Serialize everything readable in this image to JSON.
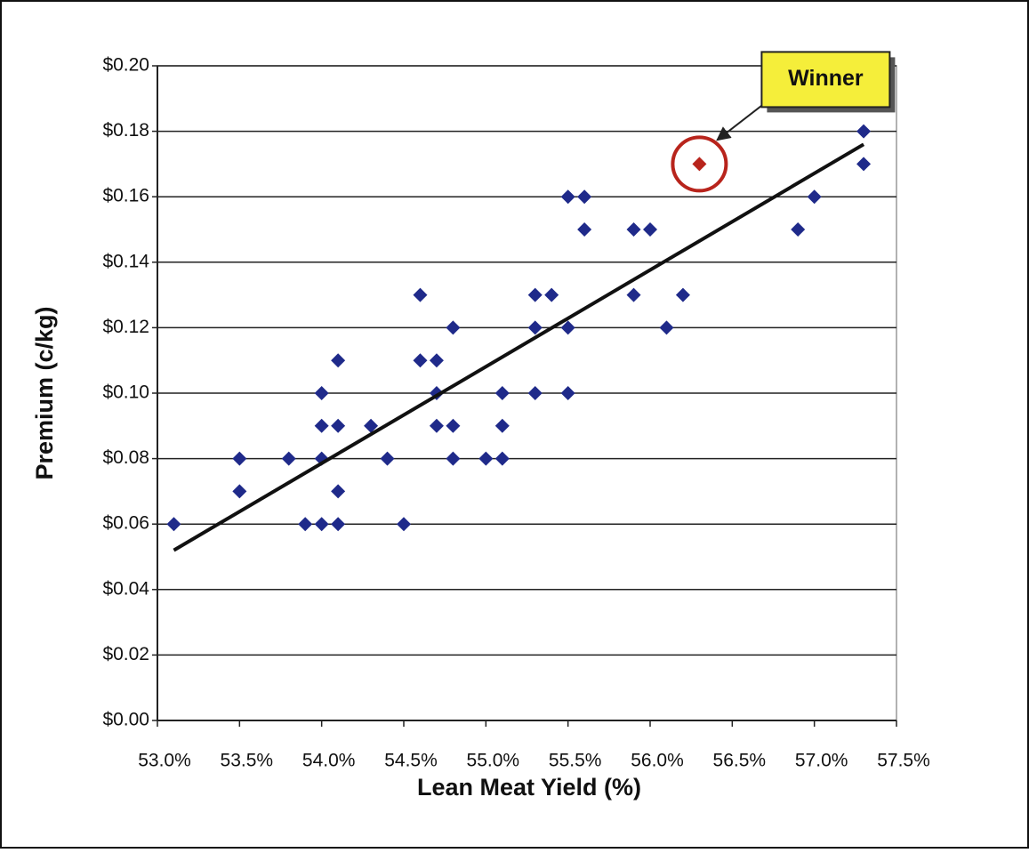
{
  "chart_data": {
    "type": "scatter",
    "x_label": "Lean Meat Yield (%)",
    "y_label": "Premium (c/kg)",
    "xlim": [
      53.0,
      57.5
    ],
    "ylim": [
      0,
      0.2
    ],
    "xticks": [
      {
        "value": 53.0,
        "label": "53.0%"
      },
      {
        "value": 53.5,
        "label": "53.5%"
      },
      {
        "value": 54.0,
        "label": "54.0%"
      },
      {
        "value": 54.5,
        "label": "54.5%"
      },
      {
        "value": 55.0,
        "label": "55.0%"
      },
      {
        "value": 55.5,
        "label": "55.5%"
      },
      {
        "value": 56.0,
        "label": "56.0%"
      },
      {
        "value": 56.5,
        "label": "56.5%"
      },
      {
        "value": 57.0,
        "label": "57.0%"
      },
      {
        "value": 57.5,
        "label": "57.5%"
      }
    ],
    "yticks": [
      {
        "value": 0,
        "label": "$0.00"
      },
      {
        "value": 0.02,
        "label": "$0.02"
      },
      {
        "value": 0.04,
        "label": "$0.04"
      },
      {
        "value": 0.06,
        "label": "$0.06"
      },
      {
        "value": 0.08,
        "label": "$0.08"
      },
      {
        "value": 0.1,
        "label": "$0.10"
      },
      {
        "value": 0.12,
        "label": "$0.12"
      },
      {
        "value": 0.14,
        "label": "$0.14"
      },
      {
        "value": 0.16,
        "label": "$0.16"
      },
      {
        "value": 0.18,
        "label": "$0.18"
      },
      {
        "value": 0.2,
        "label": "$0.20"
      }
    ],
    "grid": true,
    "series": [
      {
        "color": "#1f2a8a",
        "x": [
          53.1,
          53.5,
          53.5,
          53.8,
          53.9,
          54.0,
          54.0,
          54.0,
          54.0,
          54.1,
          54.1,
          54.1,
          54.1,
          54.3,
          54.4,
          54.5,
          54.6,
          54.6,
          54.7,
          54.7,
          54.7,
          54.8,
          54.8,
          54.8,
          55.0,
          55.1,
          55.1,
          55.1,
          55.3,
          55.3,
          55.3,
          55.4,
          55.5,
          55.5,
          55.5,
          55.6,
          55.6,
          55.9,
          55.9,
          56.0,
          56.1,
          56.2,
          56.9,
          57.0,
          57.3,
          57.3
        ],
        "y": [
          0.06,
          0.08,
          0.07,
          0.08,
          0.06,
          0.1,
          0.09,
          0.08,
          0.06,
          0.11,
          0.09,
          0.07,
          0.06,
          0.09,
          0.08,
          0.06,
          0.13,
          0.11,
          0.11,
          0.1,
          0.09,
          0.12,
          0.09,
          0.08,
          0.08,
          0.1,
          0.09,
          0.08,
          0.13,
          0.12,
          0.1,
          0.13,
          0.16,
          0.12,
          0.1,
          0.16,
          0.15,
          0.15,
          0.13,
          0.15,
          0.12,
          0.13,
          0.15,
          0.16,
          0.18,
          0.17
        ]
      },
      {
        "color": "#b8241c",
        "x": [
          56.3
        ],
        "y": [
          0.17
        ]
      }
    ],
    "trendline": {
      "color": "#111111",
      "x": [
        53.1,
        57.3
      ],
      "y": [
        0.052,
        0.176
      ]
    },
    "annotation": {
      "text": "Winner",
      "color": "#f5ee3a"
    }
  }
}
